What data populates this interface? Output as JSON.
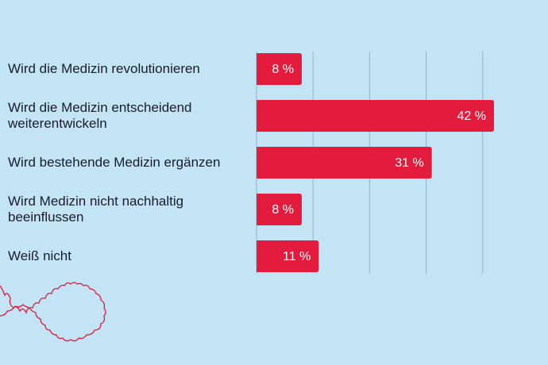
{
  "chart_data": {
    "type": "bar",
    "orientation": "horizontal",
    "categories": [
      "Wird die Medizin revolutionieren",
      "Wird die Medizin entscheidend weiterentwickeln",
      "Wird bestehende Medizin ergänzen",
      "Wird Medizin nicht nachhaltig beeinflussen",
      "Weiß nicht"
    ],
    "values": [
      8,
      42,
      31,
      8,
      11
    ],
    "value_labels": [
      "8 %",
      "42 %",
      "31 %",
      "8 %",
      "11 %"
    ],
    "color": "#e31b3c",
    "xlim": [
      0,
      42
    ],
    "xticks": [
      0,
      10,
      20,
      30,
      40
    ],
    "grid": true
  }
}
